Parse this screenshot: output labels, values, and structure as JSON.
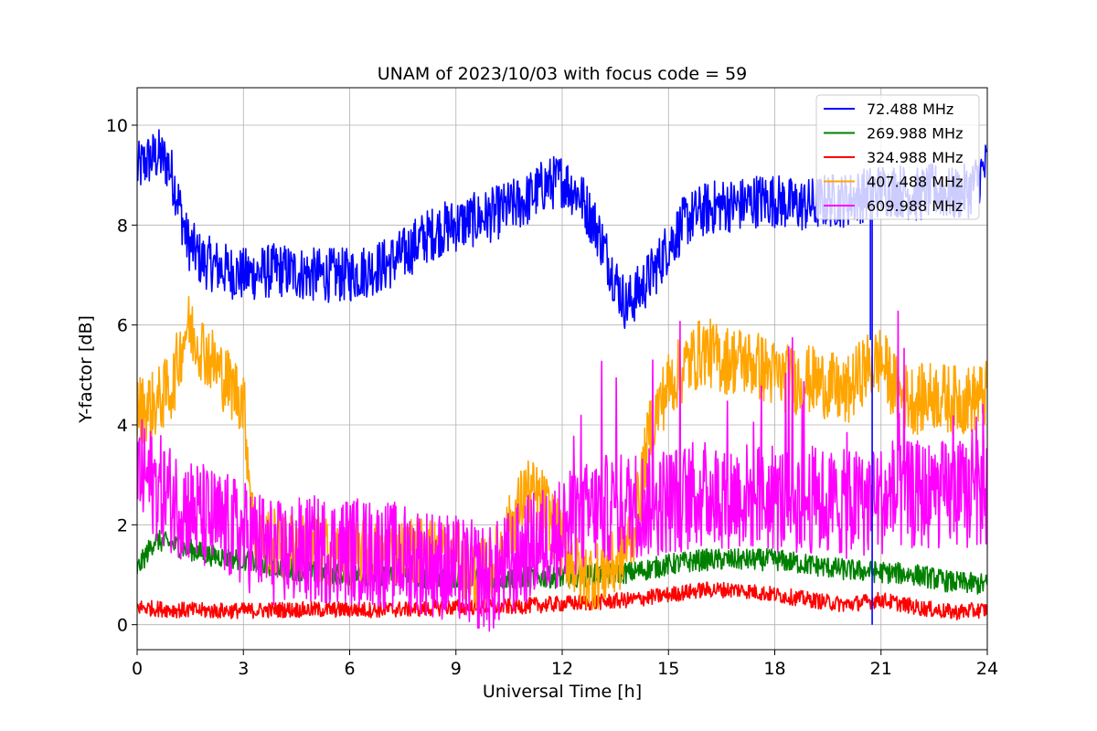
{
  "chart_data": {
    "type": "line",
    "title": "UNAM of 2023/10/03 with focus code = 59",
    "xlabel": "Universal Time [h]",
    "ylabel": "Y-factor [dB]",
    "xlim": [
      0,
      24
    ],
    "ylim": [
      -0.5,
      10.75
    ],
    "xticks": [
      0,
      3,
      6,
      9,
      12,
      15,
      18,
      21,
      24
    ],
    "yticks": [
      0,
      2,
      4,
      6,
      8,
      10
    ],
    "grid": true,
    "legend_position": "top-right",
    "series": [
      {
        "name": "  72.488 MHz",
        "color": "#0000ff",
        "x": [
          0,
          0.3,
          0.6,
          0.9,
          1.1,
          1.4,
          1.8,
          2.5,
          3,
          4,
          5,
          6,
          7,
          7.5,
          8,
          8.5,
          9,
          10,
          11,
          11.5,
          12,
          12.5,
          13,
          13.5,
          13.8,
          14.2,
          14.7,
          15,
          15.5,
          16,
          16.5,
          17,
          17.5,
          18,
          18.5,
          19,
          19.5,
          20,
          20.5,
          21,
          21.5,
          22,
          22.5,
          23,
          23.5,
          24
        ],
        "y": [
          9.1,
          9.3,
          9.4,
          9.2,
          8.7,
          7.7,
          7.3,
          7.1,
          7.0,
          7.1,
          7.0,
          7.0,
          7.2,
          7.4,
          7.7,
          7.9,
          8.0,
          8.2,
          8.5,
          8.8,
          8.9,
          8.6,
          7.9,
          6.9,
          6.4,
          6.7,
          7.2,
          7.6,
          8.1,
          8.3,
          8.4,
          8.4,
          8.5,
          8.5,
          8.4,
          8.4,
          8.5,
          8.5,
          8.6,
          8.7,
          8.7,
          8.6,
          8.7,
          8.6,
          8.7,
          9.2
        ],
        "noise": 0.55
      },
      {
        "name": "269.988 MHz",
        "color": "#008000",
        "x": [
          0,
          0.5,
          1,
          1.5,
          2,
          3,
          4,
          5,
          6,
          7,
          8,
          9,
          10,
          11,
          12,
          13,
          14,
          15,
          16,
          17,
          18,
          19,
          20,
          21,
          22,
          23,
          24
        ],
        "y": [
          1.1,
          1.7,
          1.6,
          1.5,
          1.4,
          1.3,
          1.15,
          1.05,
          1.0,
          1.0,
          0.95,
          0.95,
          0.9,
          0.95,
          0.95,
          1.0,
          1.05,
          1.2,
          1.3,
          1.3,
          1.3,
          1.2,
          1.1,
          1.05,
          1.0,
          0.85,
          0.8
        ],
        "noise": 0.22
      },
      {
        "name": "324.988 MHz",
        "color": "#ff0000",
        "x": [
          0,
          1,
          2,
          3,
          4,
          5,
          6,
          7,
          8,
          9,
          10,
          11,
          12,
          13,
          14,
          15,
          16,
          17,
          18,
          19,
          20,
          21,
          22,
          23,
          24
        ],
        "y": [
          0.35,
          0.3,
          0.28,
          0.28,
          0.3,
          0.3,
          0.3,
          0.3,
          0.32,
          0.35,
          0.35,
          0.38,
          0.42,
          0.45,
          0.5,
          0.6,
          0.7,
          0.7,
          0.6,
          0.5,
          0.4,
          0.5,
          0.35,
          0.25,
          0.3
        ],
        "noise": 0.16
      },
      {
        "name": "407.488 MHz",
        "color": "#ffa500",
        "x": [
          0,
          0.5,
          1,
          1.4,
          2,
          2.5,
          3,
          3.3,
          4,
          5,
          6,
          7,
          8,
          9,
          9.5,
          10,
          10.5,
          11,
          11.5,
          12,
          12.5,
          13,
          13.5,
          14,
          14.5,
          15,
          15.5,
          16,
          16.5,
          17,
          17.5,
          18,
          18.5,
          19,
          19.5,
          20,
          20.5,
          21,
          21.5,
          22,
          22.5,
          23,
          23.5,
          24
        ],
        "y": [
          4.3,
          4.4,
          4.8,
          6.0,
          5.4,
          4.9,
          4.5,
          1.8,
          1.6,
          1.5,
          1.4,
          1.4,
          1.5,
          1.4,
          1.0,
          1.1,
          1.9,
          2.7,
          2.4,
          1.6,
          1.0,
          1.0,
          1.2,
          1.8,
          4.0,
          4.8,
          5.2,
          5.5,
          5.3,
          5.3,
          5.2,
          5.0,
          4.9,
          4.9,
          4.8,
          4.6,
          5.1,
          5.3,
          4.6,
          4.5,
          4.6,
          4.5,
          4.5,
          4.6
        ],
        "noise": 0.7
      },
      {
        "name": "609.988 MHz",
        "color": "#ff00ff",
        "x": [
          0,
          0.5,
          1,
          1.5,
          2,
          3,
          4,
          5,
          6,
          7,
          8,
          9,
          10,
          11,
          12,
          13,
          14,
          15,
          16,
          17,
          18,
          19,
          20,
          21,
          22,
          23,
          24
        ],
        "y": [
          3.1,
          2.8,
          2.5,
          2.3,
          2.1,
          1.8,
          1.4,
          1.5,
          1.5,
          1.4,
          1.3,
          1.1,
          0.9,
          1.5,
          1.9,
          2.3,
          2.4,
          2.5,
          2.6,
          2.6,
          2.5,
          2.5,
          2.4,
          2.5,
          2.6,
          2.6,
          2.6
        ],
        "noise": 1.1
      }
    ],
    "events": [
      {
        "series": 0,
        "x": 20.7,
        "y": 5.7
      },
      {
        "series": 0,
        "x": 20.75,
        "y": 0.0
      }
    ]
  }
}
